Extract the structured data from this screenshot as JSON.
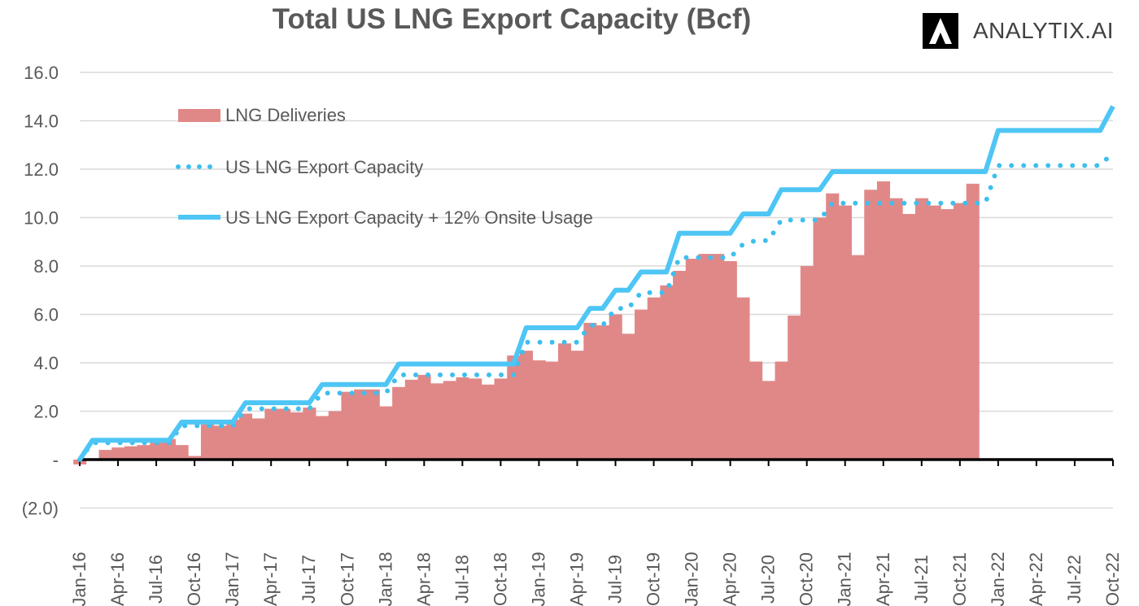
{
  "chart_data": {
    "type": "bar",
    "title": "Total US LNG Export Capacity (Bcf)",
    "ylim": [
      -2,
      16
    ],
    "y_ticks": [
      16,
      14,
      12,
      10,
      8,
      6,
      4,
      2,
      0,
      -2
    ],
    "y_tick_labels": [
      "16.0",
      "14.0",
      "12.0",
      "10.0",
      "8.0",
      "6.0",
      "4.0",
      "2.0",
      "-",
      "(2.0)"
    ],
    "x": [
      "Jan-16",
      "Feb-16",
      "Mar-16",
      "Apr-16",
      "May-16",
      "Jun-16",
      "Jul-16",
      "Aug-16",
      "Sep-16",
      "Oct-16",
      "Nov-16",
      "Dec-16",
      "Jan-17",
      "Feb-17",
      "Mar-17",
      "Apr-17",
      "May-17",
      "Jun-17",
      "Jul-17",
      "Aug-17",
      "Sep-17",
      "Oct-17",
      "Nov-17",
      "Dec-17",
      "Jan-18",
      "Feb-18",
      "Mar-18",
      "Apr-18",
      "May-18",
      "Jun-18",
      "Jul-18",
      "Aug-18",
      "Sep-18",
      "Oct-18",
      "Nov-18",
      "Dec-18",
      "Jan-19",
      "Feb-19",
      "Mar-19",
      "Apr-19",
      "May-19",
      "Jun-19",
      "Jul-19",
      "Aug-19",
      "Sep-19",
      "Oct-19",
      "Nov-19",
      "Dec-19",
      "Jan-20",
      "Feb-20",
      "Mar-20",
      "Apr-20",
      "May-20",
      "Jun-20",
      "Jul-20",
      "Aug-20",
      "Sep-20",
      "Oct-20",
      "Nov-20",
      "Dec-20",
      "Jan-21",
      "Feb-21",
      "Mar-21",
      "Apr-21",
      "May-21",
      "Jun-21",
      "Jul-21",
      "Aug-21",
      "Sep-21",
      "Oct-21",
      "Nov-21",
      "Dec-21",
      "Jan-22",
      "Feb-22",
      "Mar-22",
      "Apr-22",
      "May-22",
      "Jun-22",
      "Jul-22",
      "Aug-22",
      "Sep-22",
      "Oct-22"
    ],
    "x_tick_labels": [
      "Jan-16",
      "Apr-16",
      "Jul-16",
      "Oct-16",
      "Jan-17",
      "Apr-17",
      "Jul-17",
      "Oct-17",
      "Jan-18",
      "Apr-18",
      "Jul-18",
      "Oct-18",
      "Jan-19",
      "Apr-19",
      "Jul-19",
      "Oct-19",
      "Jan-20",
      "Apr-20",
      "Jul-20",
      "Oct-20",
      "Jan-21",
      "Apr-21",
      "Jul-21",
      "Oct-21",
      "Jan-22",
      "Apr-22",
      "Jul-22",
      "Oct-22"
    ],
    "series": [
      {
        "name": "LNG Deliveries",
        "kind": "bar",
        "color": "#e08888",
        "values": [
          -0.2,
          0.0,
          0.4,
          0.5,
          0.55,
          0.6,
          0.7,
          0.85,
          0.6,
          0.15,
          1.45,
          1.4,
          1.65,
          1.9,
          1.7,
          2.1,
          2.1,
          1.95,
          2.15,
          1.8,
          2.0,
          2.8,
          2.9,
          2.9,
          2.2,
          3.0,
          3.3,
          3.5,
          3.15,
          3.25,
          3.4,
          3.35,
          3.1,
          3.35,
          4.3,
          4.5,
          4.1,
          4.05,
          4.8,
          4.5,
          5.65,
          5.55,
          6.0,
          5.2,
          6.2,
          6.7,
          7.2,
          7.8,
          8.3,
          8.5,
          8.5,
          8.2,
          6.7,
          4.05,
          3.25,
          4.05,
          5.95,
          8.0,
          10.0,
          11.0,
          10.5,
          8.45,
          11.15,
          11.5,
          10.8,
          10.15,
          10.8,
          10.5,
          10.35,
          10.6,
          11.4,
          null,
          null,
          null,
          null,
          null,
          null,
          null,
          null,
          null,
          null,
          null
        ]
      },
      {
        "name": "US LNG Export Capacity",
        "kind": "dotted-line",
        "color": "#3ebfee",
        "values": [
          0.0,
          0.7,
          0.7,
          0.7,
          0.7,
          0.7,
          0.7,
          0.7,
          1.4,
          1.4,
          1.4,
          1.4,
          1.4,
          2.1,
          2.1,
          2.1,
          2.1,
          2.1,
          2.1,
          2.75,
          2.75,
          2.75,
          2.75,
          2.75,
          2.75,
          3.5,
          3.5,
          3.5,
          3.5,
          3.5,
          3.5,
          3.5,
          3.5,
          3.5,
          3.5,
          4.85,
          4.85,
          4.85,
          4.85,
          4.85,
          5.55,
          5.55,
          6.25,
          6.25,
          6.9,
          6.9,
          6.9,
          8.35,
          8.35,
          8.35,
          8.35,
          8.35,
          8.9,
          9.05,
          9.05,
          9.9,
          9.9,
          9.9,
          9.9,
          10.6,
          10.6,
          10.6,
          10.6,
          10.6,
          10.6,
          10.6,
          10.6,
          10.6,
          10.6,
          10.6,
          10.6,
          10.6,
          12.15,
          12.15,
          12.15,
          12.15,
          12.15,
          12.15,
          12.15,
          12.15,
          12.15,
          12.7
        ]
      },
      {
        "name": "US LNG Export Capacity + 12% Onsite Usage",
        "kind": "solid-line",
        "color": "#4ec6f5",
        "values": [
          0.0,
          0.8,
          0.8,
          0.8,
          0.8,
          0.8,
          0.8,
          0.8,
          1.55,
          1.55,
          1.55,
          1.55,
          1.55,
          2.35,
          2.35,
          2.35,
          2.35,
          2.35,
          2.35,
          3.1,
          3.1,
          3.1,
          3.1,
          3.1,
          3.1,
          3.95,
          3.95,
          3.95,
          3.95,
          3.95,
          3.95,
          3.95,
          3.95,
          3.95,
          3.95,
          5.45,
          5.45,
          5.45,
          5.45,
          5.45,
          6.25,
          6.25,
          7.0,
          7.0,
          7.75,
          7.75,
          7.75,
          9.35,
          9.35,
          9.35,
          9.35,
          9.35,
          10.15,
          10.15,
          10.15,
          11.15,
          11.15,
          11.15,
          11.15,
          11.9,
          11.9,
          11.9,
          11.9,
          11.9,
          11.9,
          11.9,
          11.9,
          11.9,
          11.9,
          11.9,
          11.9,
          11.9,
          13.6,
          13.6,
          13.6,
          13.6,
          13.6,
          13.6,
          13.6,
          13.6,
          13.6,
          14.6
        ]
      }
    ],
    "grid": true,
    "legend_position": "top-left"
  },
  "logo": {
    "text": "ANALYTIX.AI",
    "icon": "analytix-logo-icon"
  }
}
